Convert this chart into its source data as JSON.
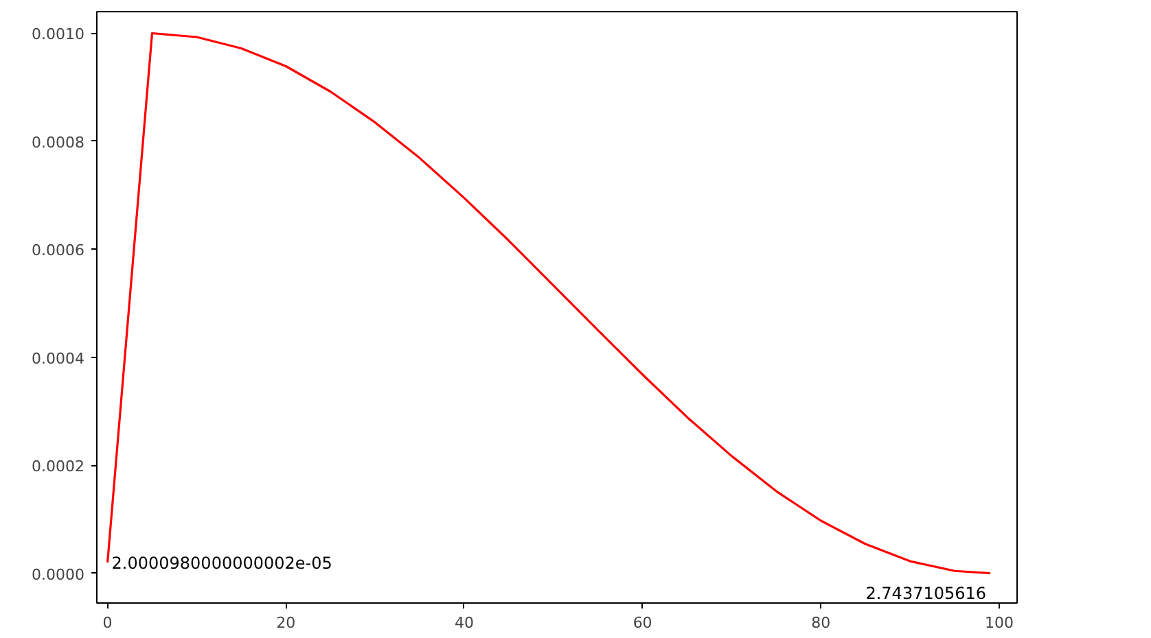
{
  "chart_data": {
    "type": "line",
    "x": [
      0,
      5,
      10,
      15,
      20,
      25,
      30,
      35,
      40,
      45,
      50,
      55,
      60,
      65,
      70,
      75,
      80,
      85,
      90,
      95,
      99
    ],
    "series": [
      {
        "color": "#ff0000",
        "values": [
          2e-05,
          0.001,
          0.000993,
          0.000972,
          0.000939,
          0.000892,
          0.000835,
          0.000769,
          0.000695,
          0.000616,
          0.000533,
          0.00045,
          0.000368,
          0.000289,
          0.000217,
          0.000152,
          9.74e-05,
          5.43e-05,
          2.24e-05,
          4.4e-06,
          0
        ]
      }
    ],
    "xlim": [
      -1.2,
      102
    ],
    "xticks": [
      0,
      20,
      40,
      60,
      80,
      100
    ],
    "ylim": [
      -5.5e-05,
      0.00104
    ],
    "yticks": [
      {
        "value": 0,
        "label": "0.0000"
      },
      {
        "value": 0.0002,
        "label": "0.0002"
      },
      {
        "value": 0.0004,
        "label": "0.0004"
      },
      {
        "value": 0.0006,
        "label": "0.0006"
      },
      {
        "value": 0.0008,
        "label": "0.0008"
      },
      {
        "value": 0.001,
        "label": "0.0010"
      }
    ],
    "annotations": [
      {
        "text": "2.0000980000000002e-05",
        "x": 0,
        "y": 2e-05
      },
      {
        "text": "2.7437105616",
        "x": 99,
        "y": 0
      }
    ],
    "grid": false,
    "marker": "none",
    "line_style": "solid"
  }
}
